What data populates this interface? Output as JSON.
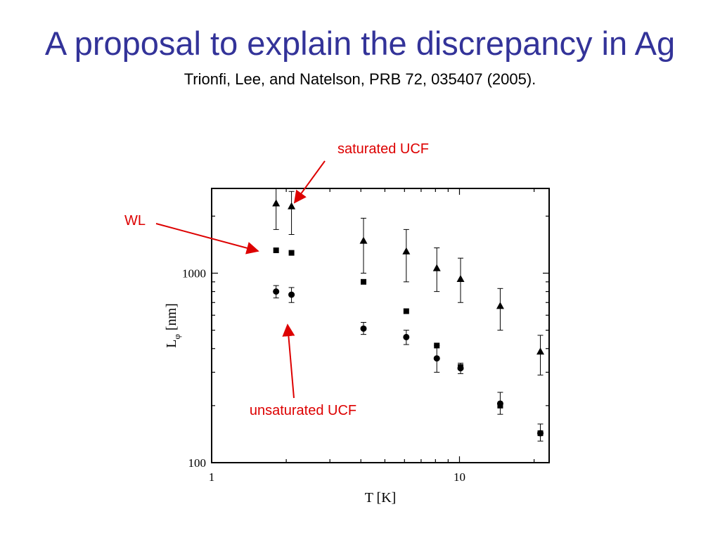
{
  "slide": {
    "title": "A proposal to explain the discrepancy in Ag",
    "subtitle": "Trionfi, Lee, and Natelson, PRB 72, 035407 (2005)."
  },
  "colors": {
    "title": "#333399",
    "annotation": "#dd0000",
    "marks": "#000000"
  },
  "chart_data": {
    "type": "scatter",
    "xlabel": "T [K]",
    "ylabel": "L",
    "ylabel_sub": "φ",
    "ylabel_unit": "[nm]",
    "xscale": "log",
    "yscale": "log",
    "xlim": [
      1,
      23
    ],
    "ylim": [
      100,
      2800
    ],
    "x_ticks": [
      {
        "value": 1,
        "label": "1"
      },
      {
        "value": 10,
        "label": "10"
      }
    ],
    "y_ticks": [
      {
        "value": 100,
        "label": "100"
      },
      {
        "value": 1000,
        "label": "1000"
      }
    ],
    "grid": false,
    "series": [
      {
        "marker": "triangle",
        "points": [
          {
            "x": 1.82,
            "y": 2330,
            "err_low": 1700,
            "err_high": 2800
          },
          {
            "x": 2.1,
            "y": 2250,
            "err_low": 1600,
            "err_high": 2700
          },
          {
            "x": 4.1,
            "y": 1480,
            "err_low": 1000,
            "err_high": 1950
          },
          {
            "x": 6.1,
            "y": 1300,
            "err_low": 900,
            "err_high": 1700
          },
          {
            "x": 8.1,
            "y": 1060,
            "err_low": 800,
            "err_high": 1360
          },
          {
            "x": 10.1,
            "y": 930,
            "err_low": 700,
            "err_high": 1200
          },
          {
            "x": 14.6,
            "y": 670,
            "err_low": 500,
            "err_high": 830
          },
          {
            "x": 21.2,
            "y": 385,
            "err_low": 290,
            "err_high": 470
          }
        ]
      },
      {
        "marker": "square",
        "points": [
          {
            "x": 1.82,
            "y": 1320
          },
          {
            "x": 2.1,
            "y": 1280
          },
          {
            "x": 4.1,
            "y": 900
          },
          {
            "x": 6.1,
            "y": 630
          },
          {
            "x": 8.1,
            "y": 415
          },
          {
            "x": 10.1,
            "y": 320
          },
          {
            "x": 14.6,
            "y": 200
          },
          {
            "x": 21.2,
            "y": 143
          }
        ]
      },
      {
        "marker": "circle",
        "points": [
          {
            "x": 1.82,
            "y": 800,
            "err_low": 740,
            "err_high": 860
          },
          {
            "x": 2.1,
            "y": 770,
            "err_low": 700,
            "err_high": 840
          },
          {
            "x": 4.1,
            "y": 510,
            "err_low": 475,
            "err_high": 550
          },
          {
            "x": 6.1,
            "y": 460,
            "err_low": 420,
            "err_high": 500
          },
          {
            "x": 8.1,
            "y": 355,
            "err_low": 300,
            "err_high": 415
          },
          {
            "x": 10.1,
            "y": 315,
            "err_low": 295,
            "err_high": 335
          },
          {
            "x": 14.6,
            "y": 205,
            "err_low": 180,
            "err_high": 235
          },
          {
            "x": 21.2,
            "y": 143,
            "err_low": 130,
            "err_high": 160
          }
        ]
      }
    ],
    "annotations": [
      {
        "id": "saturated",
        "text": "saturated UCF",
        "points_to_series": "triangle"
      },
      {
        "id": "wl",
        "text": "WL",
        "points_to_series": "square"
      },
      {
        "id": "unsaturated",
        "text": "unsaturated UCF",
        "points_to_series": "circle"
      }
    ]
  }
}
